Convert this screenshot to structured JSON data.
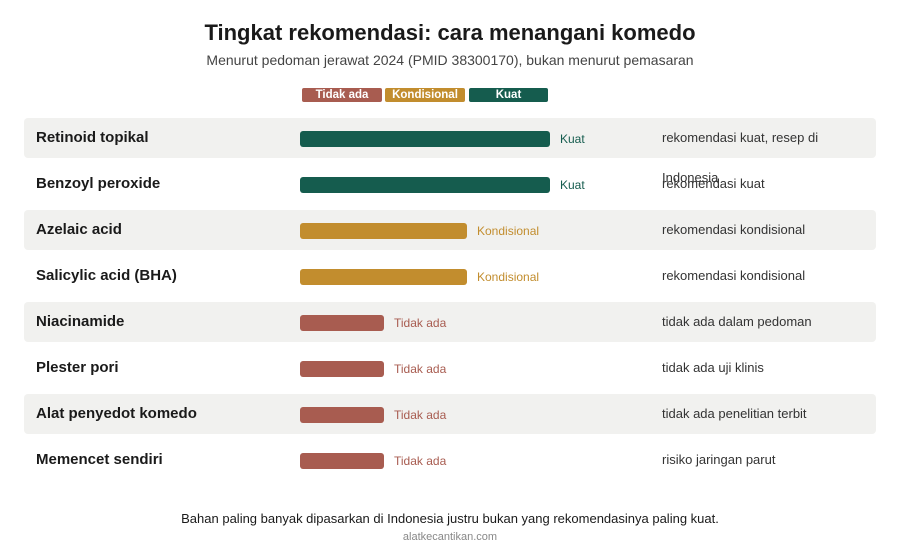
{
  "chart_data": {
    "type": "bar",
    "title": "Tingkat rekomendasi: cara menangani komedo",
    "subtitle": "Menurut pedoman jerawat 2024 (PMID 38300170), bukan menurut pemasaran",
    "levels": [
      {
        "name": "Tidak ada",
        "value": 1,
        "color": "#a85c50"
      },
      {
        "name": "Kondisional",
        "value": 2,
        "color": "#c28d2e"
      },
      {
        "name": "Kuat",
        "value": 3,
        "color": "#155c4e"
      }
    ],
    "categories": [
      "Retinoid topikal",
      "Benzoyl peroxide",
      "Azelaic acid",
      "Salicylic acid (BHA)",
      "Niacinamide",
      "Plester pori",
      "Alat penyedot komedo",
      "Memencet sendiri"
    ],
    "values": [
      3,
      3,
      2,
      2,
      1,
      1,
      1,
      1
    ],
    "value_labels": [
      "Kuat",
      "Kuat",
      "Kondisional",
      "Kondisional",
      "Tidak ada",
      "Tidak ada",
      "Tidak ada",
      "Tidak ada"
    ],
    "notes": [
      "rekomendasi kuat, resep di Indonesia",
      "rekomendasi kuat",
      "rekomendasi kondisional",
      "rekomendasi kondisional",
      "tidak ada dalam pedoman",
      "tidak ada uji klinis",
      "tidak ada penelitian terbit",
      "risiko jaringan parut"
    ],
    "xlim": [
      0,
      3
    ],
    "grid": false,
    "legend_position": "top-center"
  },
  "footnote": "Bahan paling banyak dipasarkan di Indonesia justru bukan yang rekomendasinya paling kuat.",
  "source": "alatkecantikan.com"
}
